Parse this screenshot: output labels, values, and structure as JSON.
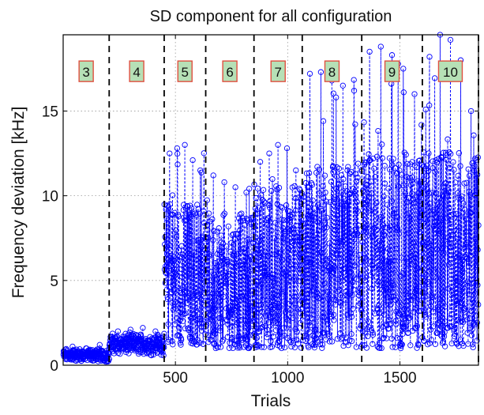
{
  "chart_data": {
    "type": "scatter",
    "title": "SD component for all configuration",
    "xlabel": "Trials",
    "ylabel": "Frequency deviation [kHz]",
    "xlim": [
      0,
      1850
    ],
    "ylim": [
      0,
      19.5
    ],
    "xticks": [
      500,
      1000,
      1500
    ],
    "yticks": [
      0,
      5,
      10,
      15
    ],
    "grid": true,
    "marker": "circle",
    "line_style": "dashed",
    "series_color": "#0000ff",
    "divider_color": "#000000",
    "label_box_fill": "#b6e0b6",
    "label_box_stroke": "#e05040",
    "config_boundaries": [
      205,
      450,
      635,
      850,
      1065,
      1330,
      1600,
      1850
    ],
    "segments": [
      {
        "label": "3",
        "start": 0,
        "end": 205,
        "mean": 0.45,
        "min": 0.0,
        "max": 1.2,
        "peaks": [
          1.1,
          1.0,
          1.2
        ]
      },
      {
        "label": "4",
        "start": 205,
        "end": 450,
        "mean": 1.1,
        "min": 0.3,
        "max": 2.2,
        "peaks": [
          2.0,
          2.1,
          2.2,
          2.0
        ]
      },
      {
        "label": "5",
        "start": 450,
        "end": 635,
        "mean": 5.5,
        "min": 1.2,
        "max": 13.0,
        "peaks": [
          12.5,
          12.8,
          13.0,
          12.1,
          11.5
        ]
      },
      {
        "label": "6",
        "start": 635,
        "end": 850,
        "mean": 5.0,
        "min": 1.0,
        "max": 11.2,
        "peaks": [
          11.2,
          10.8,
          10.5,
          10.2
        ]
      },
      {
        "label": "7",
        "start": 850,
        "end": 1065,
        "mean": 5.8,
        "min": 1.0,
        "max": 13.0,
        "peaks": [
          12.0,
          12.5,
          13.0,
          12.8,
          11.5
        ]
      },
      {
        "label": "8",
        "start": 1065,
        "end": 1330,
        "mean": 6.5,
        "min": 1.0,
        "max": 17.3,
        "peaks": [
          17.2,
          17.3,
          16.8,
          16.5,
          16.2
        ]
      },
      {
        "label": "9",
        "start": 1330,
        "end": 1600,
        "mean": 6.8,
        "min": 1.0,
        "max": 18.8,
        "peaks": [
          18.5,
          18.8,
          18.3,
          17.5,
          16.0
        ]
      },
      {
        "label": "10",
        "start": 1600,
        "end": 1850,
        "mean": 6.8,
        "min": 1.0,
        "max": 19.5,
        "peaks": [
          18.2,
          19.5,
          19.2,
          18.0,
          15.0
        ]
      }
    ]
  }
}
